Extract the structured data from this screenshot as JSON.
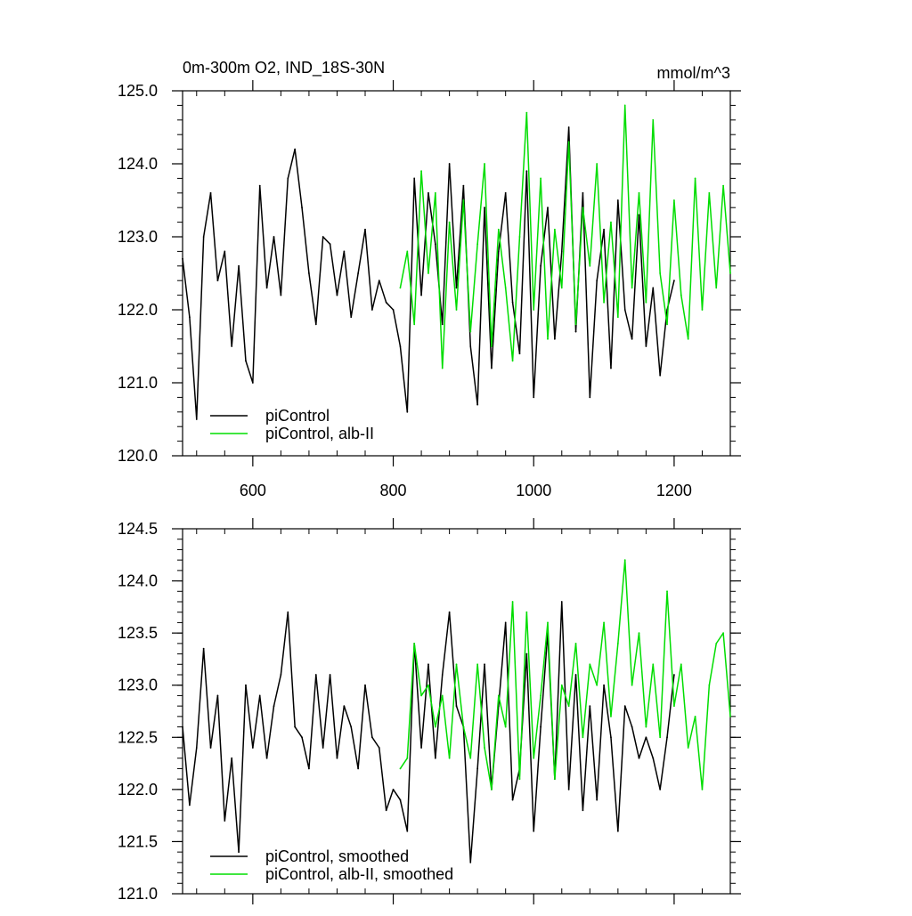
{
  "chart_data": [
    {
      "type": "line",
      "title_left": "0m-300m O2, IND_18S-30N",
      "title_right": "mmol/m^3",
      "xlim": [
        500,
        1280
      ],
      "ylim": [
        120,
        125
      ],
      "xticks": [
        600,
        800,
        1000,
        1200
      ],
      "xtick_labels": [
        "600",
        "800",
        "1000",
        "1200"
      ],
      "yticks": [
        120,
        121,
        122,
        123,
        124,
        125
      ],
      "ytick_labels": [
        "120.0",
        "121.0",
        "122.0",
        "123.0",
        "124.0",
        "125.0"
      ],
      "legend_position": "lower-left",
      "series": [
        {
          "name": "piControl",
          "color": "#000000",
          "x": [
            500,
            510,
            520,
            530,
            540,
            550,
            560,
            570,
            580,
            590,
            600,
            610,
            620,
            630,
            640,
            650,
            660,
            670,
            680,
            690,
            700,
            710,
            720,
            730,
            740,
            750,
            760,
            770,
            780,
            790,
            800,
            810,
            820,
            830,
            840,
            850,
            860,
            870,
            880,
            890,
            900,
            910,
            920,
            930,
            940,
            950,
            960,
            970,
            980,
            990,
            1000,
            1010,
            1020,
            1030,
            1040,
            1050,
            1060,
            1070,
            1080,
            1090,
            1100,
            1110,
            1120,
            1130,
            1140,
            1150,
            1160,
            1170,
            1180,
            1190,
            1200
          ],
          "values": [
            122.7,
            121.9,
            120.5,
            123.0,
            123.6,
            122.4,
            122.8,
            121.5,
            122.6,
            121.3,
            121.0,
            123.7,
            122.3,
            123.0,
            122.2,
            123.8,
            124.2,
            123.4,
            122.5,
            121.8,
            123.0,
            122.9,
            122.2,
            122.8,
            121.9,
            122.5,
            123.1,
            122.0,
            122.4,
            122.1,
            122.0,
            121.5,
            120.6,
            123.8,
            122.2,
            123.6,
            122.9,
            121.8,
            124.0,
            122.3,
            123.7,
            121.5,
            120.7,
            123.4,
            121.2,
            122.8,
            123.6,
            122.1,
            121.4,
            123.9,
            120.8,
            122.6,
            123.4,
            121.6,
            122.8,
            124.5,
            121.7,
            123.6,
            120.8,
            122.4,
            123.1,
            121.2,
            123.5,
            122.0,
            121.6,
            123.3,
            121.5,
            122.3,
            121.1,
            122.0,
            122.4
          ]
        },
        {
          "name": "piControl, alb-II",
          "color": "#00dd00",
          "x": [
            810,
            820,
            830,
            840,
            850,
            860,
            870,
            880,
            890,
            900,
            910,
            920,
            930,
            940,
            950,
            960,
            970,
            980,
            990,
            1000,
            1010,
            1020,
            1030,
            1040,
            1050,
            1060,
            1070,
            1080,
            1090,
            1100,
            1110,
            1120,
            1130,
            1140,
            1150,
            1160,
            1170,
            1180,
            1190,
            1200,
            1210,
            1220,
            1230,
            1240,
            1250,
            1260,
            1270,
            1280
          ],
          "values": [
            122.3,
            122.8,
            121.8,
            123.9,
            122.5,
            123.6,
            121.2,
            123.2,
            122.0,
            123.5,
            121.7,
            122.9,
            124.0,
            121.5,
            123.1,
            122.3,
            121.3,
            123.0,
            124.7,
            122.0,
            123.8,
            121.6,
            123.1,
            122.3,
            124.3,
            121.8,
            123.4,
            122.6,
            124.0,
            122.1,
            123.2,
            121.9,
            124.8,
            122.3,
            123.6,
            122.1,
            124.6,
            122.5,
            121.8,
            123.5,
            122.2,
            121.6,
            123.8,
            122.0,
            123.6,
            122.3,
            123.7,
            122.5
          ]
        }
      ]
    },
    {
      "type": "line",
      "xlim": [
        500,
        1280
      ],
      "ylim": [
        121,
        124.5
      ],
      "xticks": [
        600,
        800,
        1000,
        1200
      ],
      "xtick_labels": [],
      "yticks": [
        121,
        121.5,
        122,
        122.5,
        123,
        123.5,
        124,
        124.5
      ],
      "ytick_labels": [
        "121.0",
        "121.5",
        "122.0",
        "122.5",
        "123.0",
        "123.5",
        "124.0",
        "124.5"
      ],
      "legend_position": "lower-left",
      "series": [
        {
          "name": "piControl, smoothed",
          "color": "#000000",
          "x": [
            500,
            510,
            520,
            530,
            540,
            550,
            560,
            570,
            580,
            590,
            600,
            610,
            620,
            630,
            640,
            650,
            660,
            670,
            680,
            690,
            700,
            710,
            720,
            730,
            740,
            750,
            760,
            770,
            780,
            790,
            800,
            810,
            820,
            830,
            840,
            850,
            860,
            870,
            880,
            890,
            900,
            910,
            920,
            930,
            940,
            950,
            960,
            970,
            980,
            990,
            1000,
            1010,
            1020,
            1030,
            1040,
            1050,
            1060,
            1070,
            1080,
            1090,
            1100,
            1110,
            1120,
            1130,
            1140,
            1150,
            1160,
            1170,
            1180,
            1190,
            1200
          ],
          "values": [
            122.6,
            121.85,
            122.4,
            123.35,
            122.4,
            122.9,
            121.7,
            122.3,
            121.4,
            123.0,
            122.4,
            122.9,
            122.3,
            122.8,
            123.1,
            123.7,
            122.6,
            122.5,
            122.2,
            123.1,
            122.4,
            123.1,
            122.3,
            122.8,
            122.6,
            122.2,
            123.0,
            122.5,
            122.4,
            121.8,
            122.0,
            121.9,
            121.6,
            123.4,
            122.4,
            123.2,
            122.3,
            123.1,
            123.7,
            122.8,
            122.6,
            121.3,
            122.2,
            123.2,
            122.0,
            122.8,
            123.6,
            121.9,
            122.2,
            123.3,
            121.6,
            122.6,
            123.5,
            122.1,
            123.8,
            122.0,
            123.1,
            121.8,
            122.8,
            121.9,
            123.0,
            122.5,
            121.6,
            122.8,
            122.6,
            122.3,
            122.5,
            122.3,
            122.0,
            122.5,
            123.1
          ]
        },
        {
          "name": "piControl, alb-II, smoothed",
          "color": "#00dd00",
          "x": [
            810,
            820,
            830,
            840,
            850,
            860,
            870,
            880,
            890,
            900,
            910,
            920,
            930,
            940,
            950,
            960,
            970,
            980,
            990,
            1000,
            1010,
            1020,
            1030,
            1040,
            1050,
            1060,
            1070,
            1080,
            1090,
            1100,
            1110,
            1120,
            1130,
            1140,
            1150,
            1160,
            1170,
            1180,
            1190,
            1200,
            1210,
            1220,
            1230,
            1240,
            1250,
            1260,
            1270,
            1280
          ],
          "values": [
            122.2,
            122.3,
            123.4,
            122.9,
            123.0,
            122.6,
            122.9,
            122.3,
            123.2,
            122.6,
            122.3,
            123.2,
            122.4,
            122.0,
            122.9,
            122.6,
            123.8,
            122.1,
            123.7,
            122.3,
            122.9,
            123.6,
            122.1,
            123.0,
            122.8,
            123.4,
            122.5,
            123.2,
            123.0,
            123.6,
            122.7,
            123.4,
            124.2,
            123.0,
            123.5,
            122.6,
            123.2,
            122.5,
            123.9,
            122.8,
            123.2,
            122.4,
            122.7,
            122.0,
            123.0,
            123.4,
            123.5,
            122.7
          ]
        }
      ]
    }
  ]
}
